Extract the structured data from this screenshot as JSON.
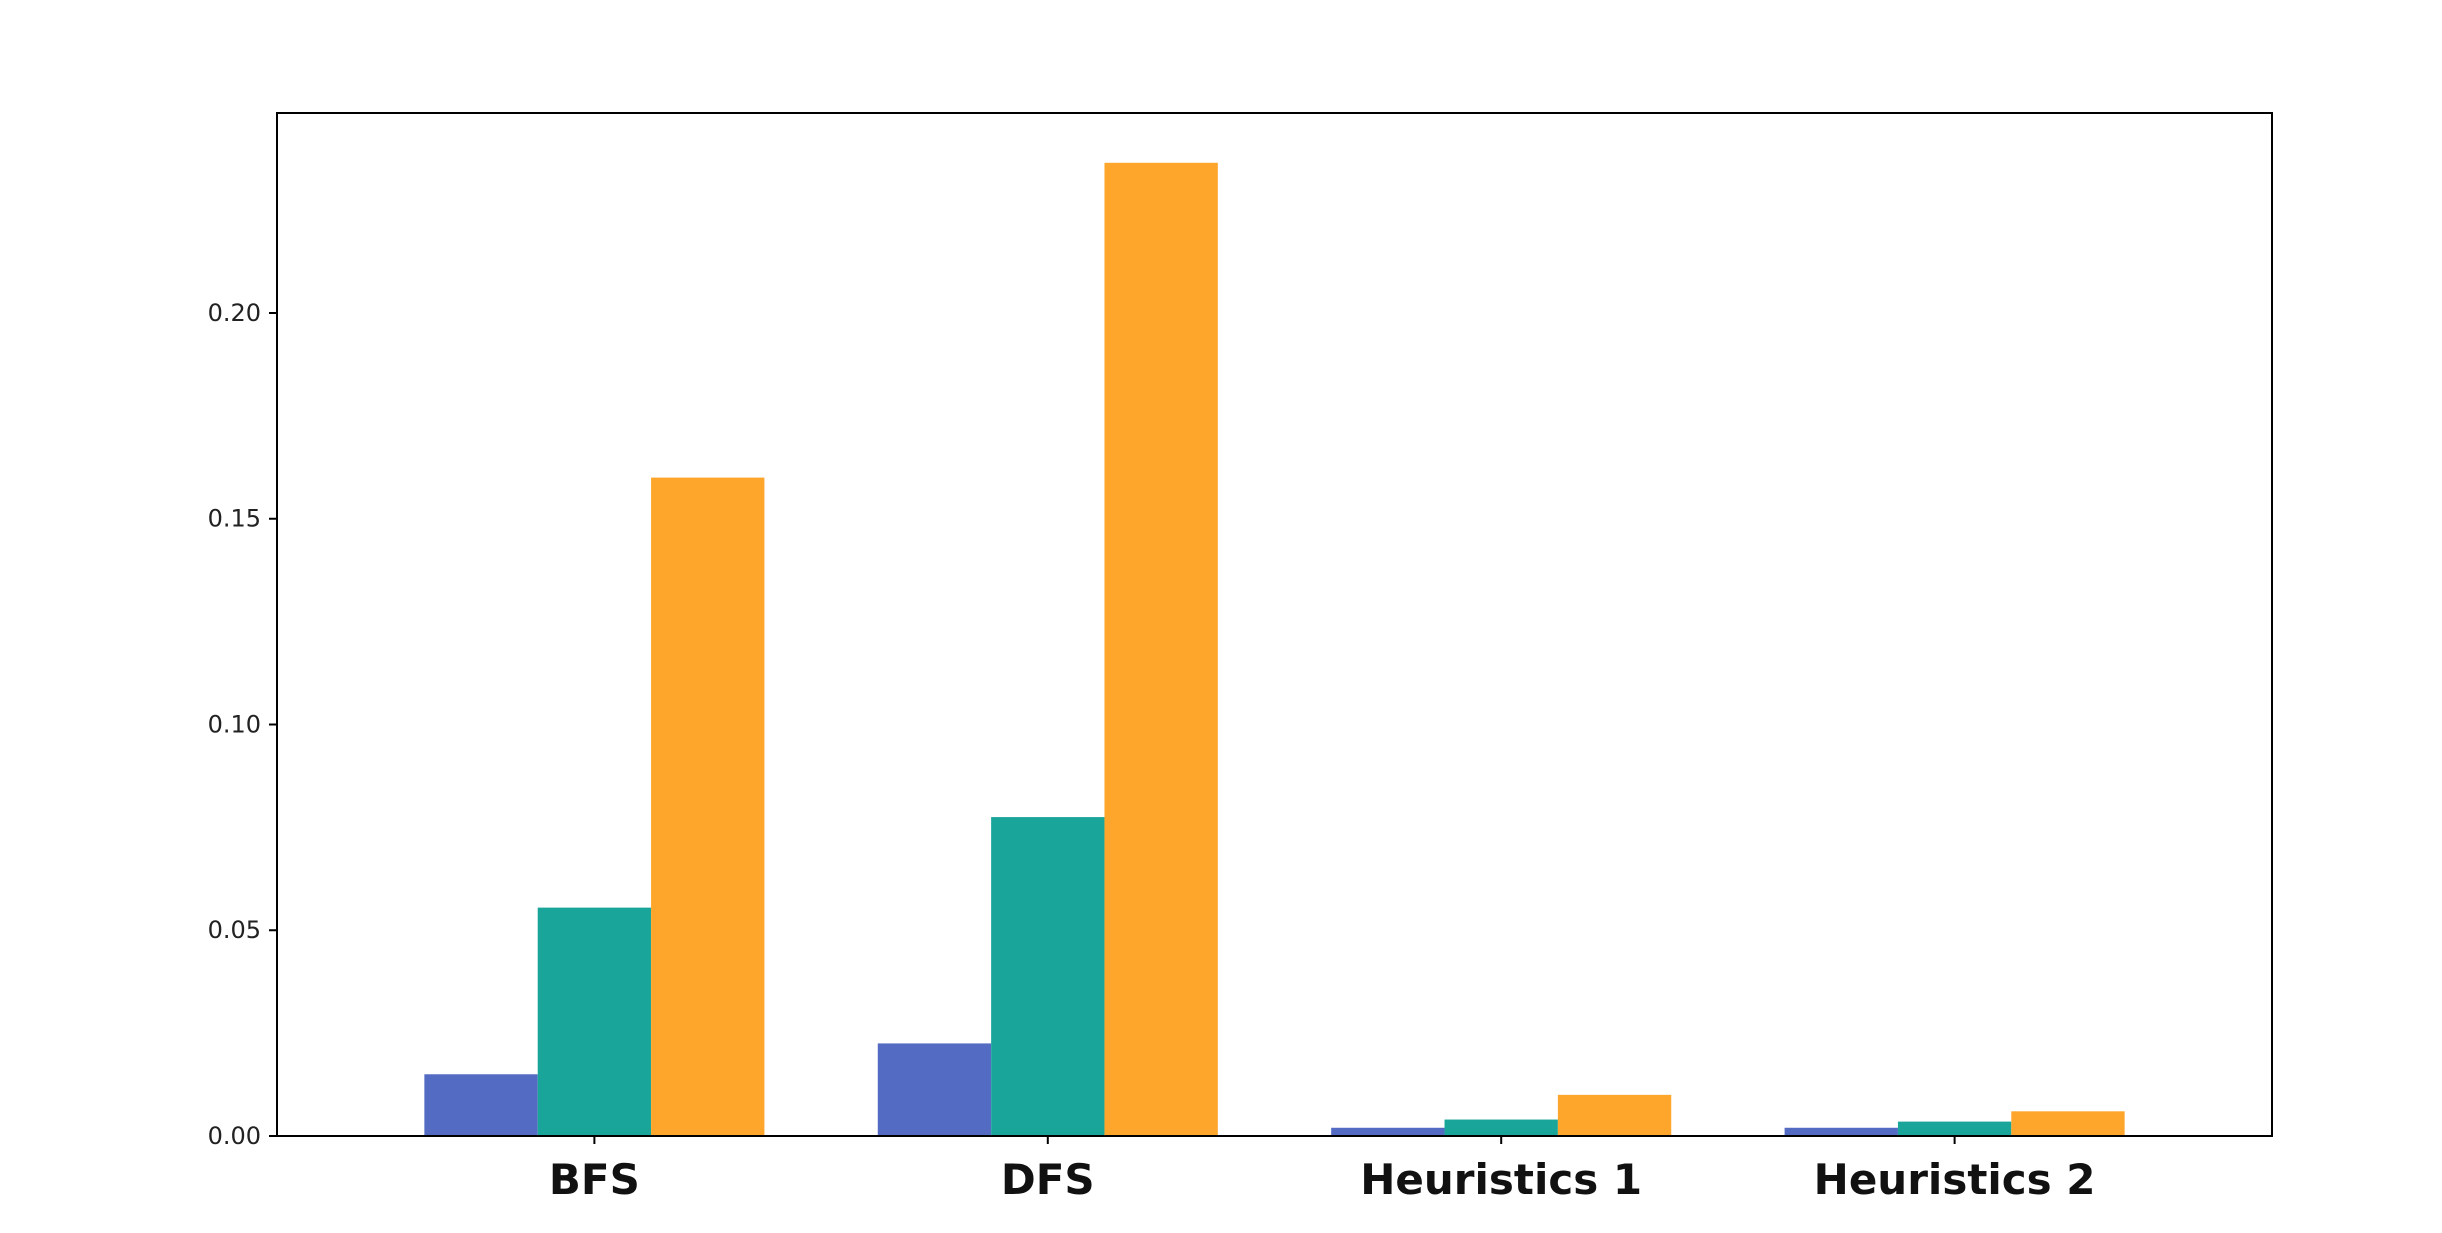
{
  "chart_data": {
    "type": "bar",
    "title": "",
    "xlabel": "",
    "ylabel": "",
    "categories": [
      "BFS",
      "DFS",
      "Heuristics 1",
      "Heuristics 2"
    ],
    "series": [
      {
        "values": [
          0.015,
          0.0225,
          0.002,
          0.002
        ],
        "color": "#536bc3"
      },
      {
        "values": [
          0.0555,
          0.0775,
          0.004,
          0.0035
        ],
        "color": "#1aa59a"
      },
      {
        "values": [
          0.16,
          0.2365,
          0.01,
          0.006
        ],
        "color": "#fea62c"
      }
    ],
    "ylim": [
      0,
      0.2486
    ],
    "yticks": [
      0.0,
      0.05,
      0.1,
      0.15,
      0.2
    ],
    "ytick_labels": [
      "0.00",
      "0.05",
      "0.10",
      "0.15",
      "0.20"
    ],
    "grid": false,
    "legend": "none"
  }
}
